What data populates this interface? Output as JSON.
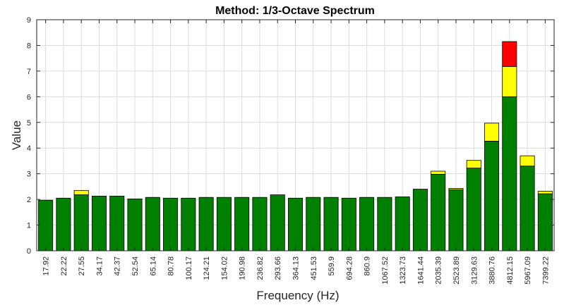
{
  "chart_data": {
    "type": "bar",
    "stacked": true,
    "title": "Method: 1/3-Octave Spectrum",
    "xlabel": "Frequency (Hz)",
    "ylabel": "Value",
    "ylim": [
      0,
      9
    ],
    "yticks": [
      "0",
      "1",
      "2",
      "3",
      "4",
      "5",
      "6",
      "7",
      "8",
      "9"
    ],
    "grid": true,
    "categories": [
      "17.92",
      "22.22",
      "27.55",
      "34.17",
      "42.37",
      "52.54",
      "65.14",
      "80.78",
      "100.17",
      "124.21",
      "154.02",
      "190.98",
      "236.82",
      "293.66",
      "364.13",
      "451.53",
      "559.9",
      "694.28",
      "860.9",
      "1067.52",
      "1323.73",
      "1641.44",
      "2035.39",
      "2523.89",
      "3129.63",
      "3880.76",
      "4812.15",
      "5967.09",
      "7399.22"
    ],
    "series": [
      {
        "name": "green",
        "color": "#008000",
        "values": [
          1.97,
          2.05,
          2.18,
          2.13,
          2.13,
          2.02,
          2.08,
          2.05,
          2.05,
          2.08,
          2.08,
          2.08,
          2.08,
          2.18,
          2.05,
          2.08,
          2.08,
          2.05,
          2.08,
          2.08,
          2.1,
          2.4,
          2.98,
          2.38,
          3.22,
          4.27,
          6.0,
          3.3,
          2.22
        ]
      },
      {
        "name": "yellow",
        "color": "#ffff00",
        "values": [
          0,
          0,
          0.17,
          0,
          0,
          0,
          0,
          0,
          0,
          0,
          0,
          0,
          0,
          0,
          0,
          0,
          0,
          0,
          0,
          0,
          0,
          0,
          0.12,
          0.05,
          0.3,
          0.7,
          1.18,
          0.4,
          0.1
        ]
      },
      {
        "name": "red",
        "color": "#ff0000",
        "values": [
          0,
          0,
          0,
          0,
          0,
          0,
          0,
          0,
          0,
          0,
          0,
          0,
          0,
          0,
          0,
          0,
          0,
          0,
          0,
          0,
          0,
          0,
          0,
          0,
          0,
          0,
          0.97,
          0,
          0
        ]
      }
    ]
  }
}
